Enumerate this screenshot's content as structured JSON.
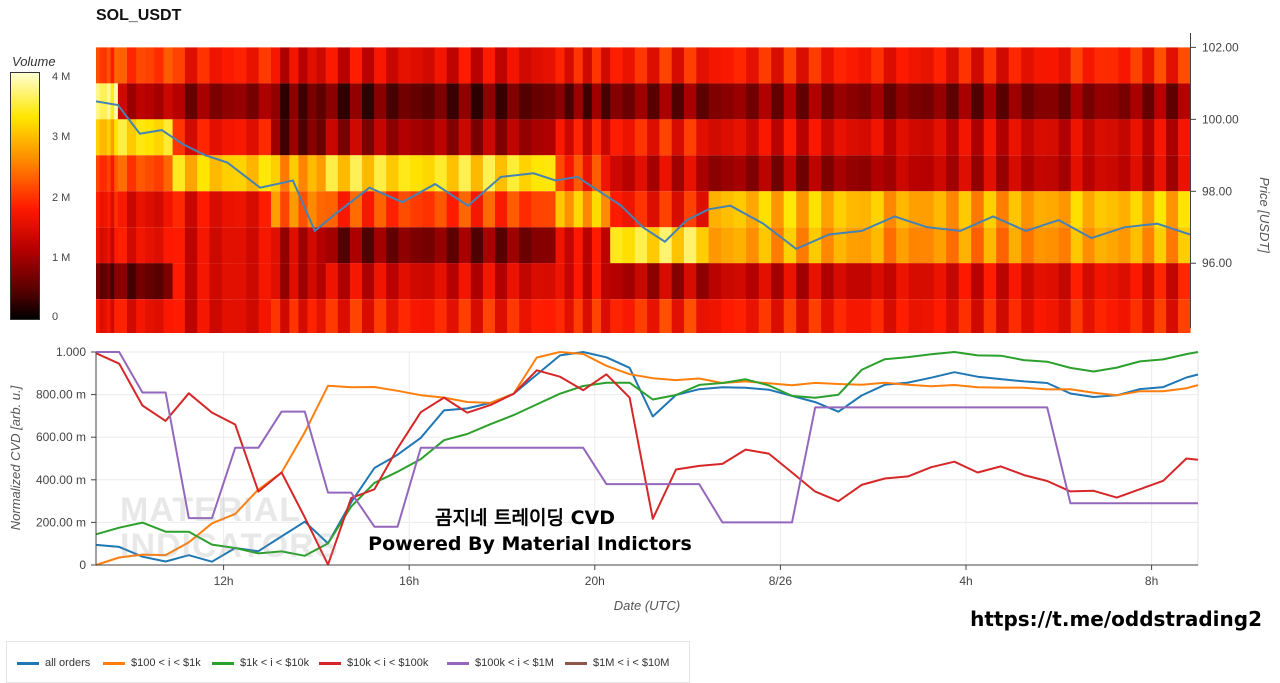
{
  "title": "SOL_USDT",
  "colorbar": {
    "title": "Volume",
    "ticks": [
      "4 M",
      "3 M",
      "2 M",
      "1 M",
      "0"
    ]
  },
  "price_axis": {
    "label": "Price [USDT]",
    "ticks": [
      "102.00",
      "100.00",
      "98.00",
      "96.00"
    ]
  },
  "cvd_axis": {
    "ylabel": "Normalized CVD [arb. u.]",
    "xlabel": "Date (UTC)",
    "yticks": [
      "1.000",
      "800.00 m",
      "600.00 m",
      "400.00 m",
      "200.00 m",
      "0"
    ],
    "xticks": [
      "12h",
      "16h",
      "20h",
      "8/26",
      "4h",
      "8h"
    ]
  },
  "watermark": {
    "line1": "곰지네 트레이딩 CVD",
    "line2": "Powered By Material Indictors",
    "ghost": "MATERIAL\nINDICATORS"
  },
  "url": "https://t.me/oddstrading2",
  "colors": {
    "all_orders": "#1f77b4",
    "s100_1k": "#ff7f0e",
    "s1k_10k": "#2ca02c",
    "s10k_100k": "#d62728",
    "s100k_1M": "#9467bd",
    "s1M_10M": "#8c564b"
  },
  "legend": [
    {
      "label": "all orders",
      "color": "#1f77b4"
    },
    {
      "label": "$100 < i < $1k",
      "color": "#ff7f0e"
    },
    {
      "label": "$1k < i < $10k",
      "color": "#2ca02c"
    },
    {
      "label": "$10k < i < $100k",
      "color": "#d62728"
    },
    {
      "label": "$100k < i < $1M",
      "color": "#9467bd"
    },
    {
      "label": "$1M < i < $10M",
      "color": "#8c564b"
    }
  ],
  "chart_data": [
    {
      "type": "heatmap",
      "title": "SOL_USDT",
      "ylabel": "Price [USDT]",
      "ylim": [
        94.2,
        102.4
      ],
      "price_bands": [
        101.5,
        100.5,
        99.5,
        98.5,
        97.5,
        96.5,
        95.5,
        94.5
      ],
      "colorbar_range": [
        0,
        4.3
      ],
      "segments": [
        {
          "start": 0.0,
          "end": 0.02,
          "levels": [
            2.2,
            3.9,
            3.2,
            2.1,
            1.8,
            1.6,
            0.6,
            1.7
          ]
        },
        {
          "start": 0.02,
          "end": 0.07,
          "levels": [
            2.2,
            1.2,
            3.5,
            2.3,
            1.6,
            1.7,
            0.6,
            1.7
          ]
        },
        {
          "start": 0.07,
          "end": 0.16,
          "levels": [
            1.9,
            0.9,
            1.8,
            3.3,
            1.7,
            1.6,
            1.6,
            1.6
          ]
        },
        {
          "start": 0.16,
          "end": 0.21,
          "levels": [
            1.5,
            0.6,
            0.7,
            3.0,
            2.6,
            1.3,
            1.3,
            1.8
          ]
        },
        {
          "start": 0.21,
          "end": 0.42,
          "levels": [
            1.6,
            0.6,
            1.1,
            3.5,
            2.2,
            0.8,
            1.5,
            1.9
          ]
        },
        {
          "start": 0.42,
          "end": 0.47,
          "levels": [
            1.8,
            0.7,
            1.7,
            2.1,
            3.1,
            1.6,
            1.6,
            1.9
          ]
        },
        {
          "start": 0.47,
          "end": 0.56,
          "levels": [
            1.9,
            0.8,
            1.9,
            1.4,
            1.9,
            3.6,
            1.2,
            2.0
          ]
        },
        {
          "start": 0.56,
          "end": 0.72,
          "levels": [
            1.9,
            0.9,
            1.6,
            1.0,
            3.2,
            3.0,
            1.4,
            1.9
          ]
        },
        {
          "start": 0.72,
          "end": 0.88,
          "levels": [
            1.8,
            0.8,
            1.5,
            1.3,
            3.0,
            2.8,
            1.6,
            1.8
          ]
        },
        {
          "start": 0.88,
          "end": 1.0,
          "levels": [
            2.0,
            0.9,
            1.5,
            1.4,
            3.2,
            3.0,
            1.7,
            1.9
          ]
        }
      ],
      "price_line": {
        "name": "price",
        "x": [
          0.0,
          0.02,
          0.04,
          0.06,
          0.08,
          0.1,
          0.12,
          0.15,
          0.18,
          0.2,
          0.22,
          0.25,
          0.28,
          0.31,
          0.34,
          0.37,
          0.4,
          0.42,
          0.44,
          0.46,
          0.48,
          0.5,
          0.52,
          0.54,
          0.56,
          0.58,
          0.61,
          0.64,
          0.67,
          0.7,
          0.73,
          0.76,
          0.79,
          0.82,
          0.85,
          0.88,
          0.91,
          0.94,
          0.97,
          1.0
        ],
        "y": [
          100.5,
          100.4,
          99.6,
          99.7,
          99.3,
          99.0,
          98.8,
          98.1,
          98.3,
          96.9,
          97.4,
          98.1,
          97.7,
          98.2,
          97.6,
          98.4,
          98.5,
          98.3,
          98.4,
          98.0,
          97.6,
          97.0,
          96.6,
          97.2,
          97.5,
          97.6,
          97.1,
          96.4,
          96.8,
          96.9,
          97.3,
          97.0,
          96.9,
          97.3,
          96.9,
          97.2,
          96.7,
          97.0,
          97.1,
          96.8
        ]
      }
    },
    {
      "type": "line",
      "xlabel": "Date (UTC)",
      "ylabel": "Normalized CVD [arb. u.]",
      "ylim": [
        0,
        1.0
      ],
      "xlim_hours": [
        9.25,
        33.0
      ],
      "x_tick_hours": [
        12,
        16,
        20,
        24,
        28,
        32
      ],
      "x_tick_labels": [
        "12h",
        "16h",
        "20h",
        "8/26",
        "4h",
        "8h"
      ],
      "x_hours": [
        9.25,
        9.75,
        10.25,
        10.75,
        11.25,
        11.75,
        12.25,
        12.75,
        13.25,
        13.75,
        14.25,
        14.75,
        15.25,
        15.75,
        16.25,
        16.75,
        17.25,
        17.75,
        18.25,
        18.75,
        19.25,
        19.75,
        20.25,
        20.75,
        21.25,
        21.75,
        22.25,
        22.75,
        23.25,
        23.75,
        24.25,
        24.75,
        25.25,
        25.75,
        26.25,
        26.75,
        27.25,
        27.75,
        28.25,
        28.75,
        29.25,
        29.75,
        30.25,
        30.75,
        31.25,
        31.75,
        32.25,
        32.75,
        33.0
      ],
      "series": [
        {
          "name": "all orders",
          "color": "#1f77b4",
          "values": [
            0.1,
            0.08,
            0.04,
            0.02,
            0.04,
            0.02,
            0.08,
            0.06,
            0.14,
            0.2,
            0.1,
            0.3,
            0.45,
            0.52,
            0.6,
            0.72,
            0.74,
            0.76,
            0.8,
            0.9,
            0.98,
            1.0,
            0.98,
            0.92,
            0.7,
            0.8,
            0.82,
            0.84,
            0.83,
            0.82,
            0.8,
            0.76,
            0.72,
            0.8,
            0.84,
            0.86,
            0.88,
            0.9,
            0.89,
            0.87,
            0.86,
            0.86,
            0.8,
            0.79,
            0.8,
            0.82,
            0.84,
            0.88,
            0.89
          ]
        },
        {
          "name": "$100 < i < $1k",
          "color": "#ff7f0e",
          "values": [
            0.0,
            0.03,
            0.05,
            0.05,
            0.1,
            0.2,
            0.24,
            0.35,
            0.44,
            0.62,
            0.84,
            0.84,
            0.83,
            0.82,
            0.8,
            0.78,
            0.77,
            0.76,
            0.8,
            0.98,
            1.0,
            0.99,
            0.94,
            0.89,
            0.88,
            0.87,
            0.87,
            0.86,
            0.86,
            0.85,
            0.85,
            0.85,
            0.85,
            0.85,
            0.85,
            0.85,
            0.84,
            0.84,
            0.84,
            0.83,
            0.83,
            0.83,
            0.82,
            0.81,
            0.8,
            0.81,
            0.82,
            0.83,
            0.84
          ]
        },
        {
          "name": "$1k < i < $10k",
          "color": "#2ca02c",
          "values": [
            0.15,
            0.17,
            0.2,
            0.16,
            0.15,
            0.1,
            0.08,
            0.05,
            0.07,
            0.04,
            0.1,
            0.28,
            0.38,
            0.44,
            0.5,
            0.58,
            0.62,
            0.66,
            0.7,
            0.76,
            0.8,
            0.84,
            0.86,
            0.85,
            0.78,
            0.8,
            0.84,
            0.86,
            0.87,
            0.84,
            0.8,
            0.78,
            0.8,
            0.92,
            0.96,
            0.98,
            0.99,
            1.0,
            0.99,
            0.98,
            0.96,
            0.96,
            0.92,
            0.91,
            0.93,
            0.95,
            0.97,
            0.99,
            1.0
          ]
        },
        {
          "name": "$10k < i < $100k",
          "color": "#d62728",
          "values": [
            1.0,
            0.94,
            0.75,
            0.68,
            0.8,
            0.72,
            0.66,
            0.34,
            0.44,
            0.22,
            0.0,
            0.32,
            0.35,
            0.55,
            0.72,
            0.78,
            0.72,
            0.75,
            0.8,
            0.92,
            0.88,
            0.82,
            0.9,
            0.78,
            0.22,
            0.45,
            0.46,
            0.48,
            0.54,
            0.52,
            0.44,
            0.34,
            0.3,
            0.38,
            0.4,
            0.42,
            0.46,
            0.48,
            0.44,
            0.46,
            0.42,
            0.4,
            0.34,
            0.35,
            0.32,
            0.35,
            0.4,
            0.5,
            0.49
          ]
        },
        {
          "name": "$100k < i < $1M",
          "color": "#9467bd",
          "values": [
            1.0,
            1.0,
            0.81,
            0.81,
            0.22,
            0.22,
            0.55,
            0.55,
            0.72,
            0.72,
            0.34,
            0.34,
            0.18,
            0.18,
            0.55,
            0.55,
            0.55,
            0.55,
            0.55,
            0.55,
            0.55,
            0.55,
            0.38,
            0.38,
            0.38,
            0.38,
            0.38,
            0.2,
            0.2,
            0.2,
            0.2,
            0.74,
            0.74,
            0.74,
            0.74,
            0.74,
            0.74,
            0.74,
            0.74,
            0.74,
            0.74,
            0.74,
            0.29,
            0.29,
            0.29,
            0.29,
            0.29,
            0.29,
            0.29
          ]
        },
        {
          "name": "$1M < i < $10M",
          "color": "#8c564b",
          "values": []
        }
      ]
    }
  ]
}
